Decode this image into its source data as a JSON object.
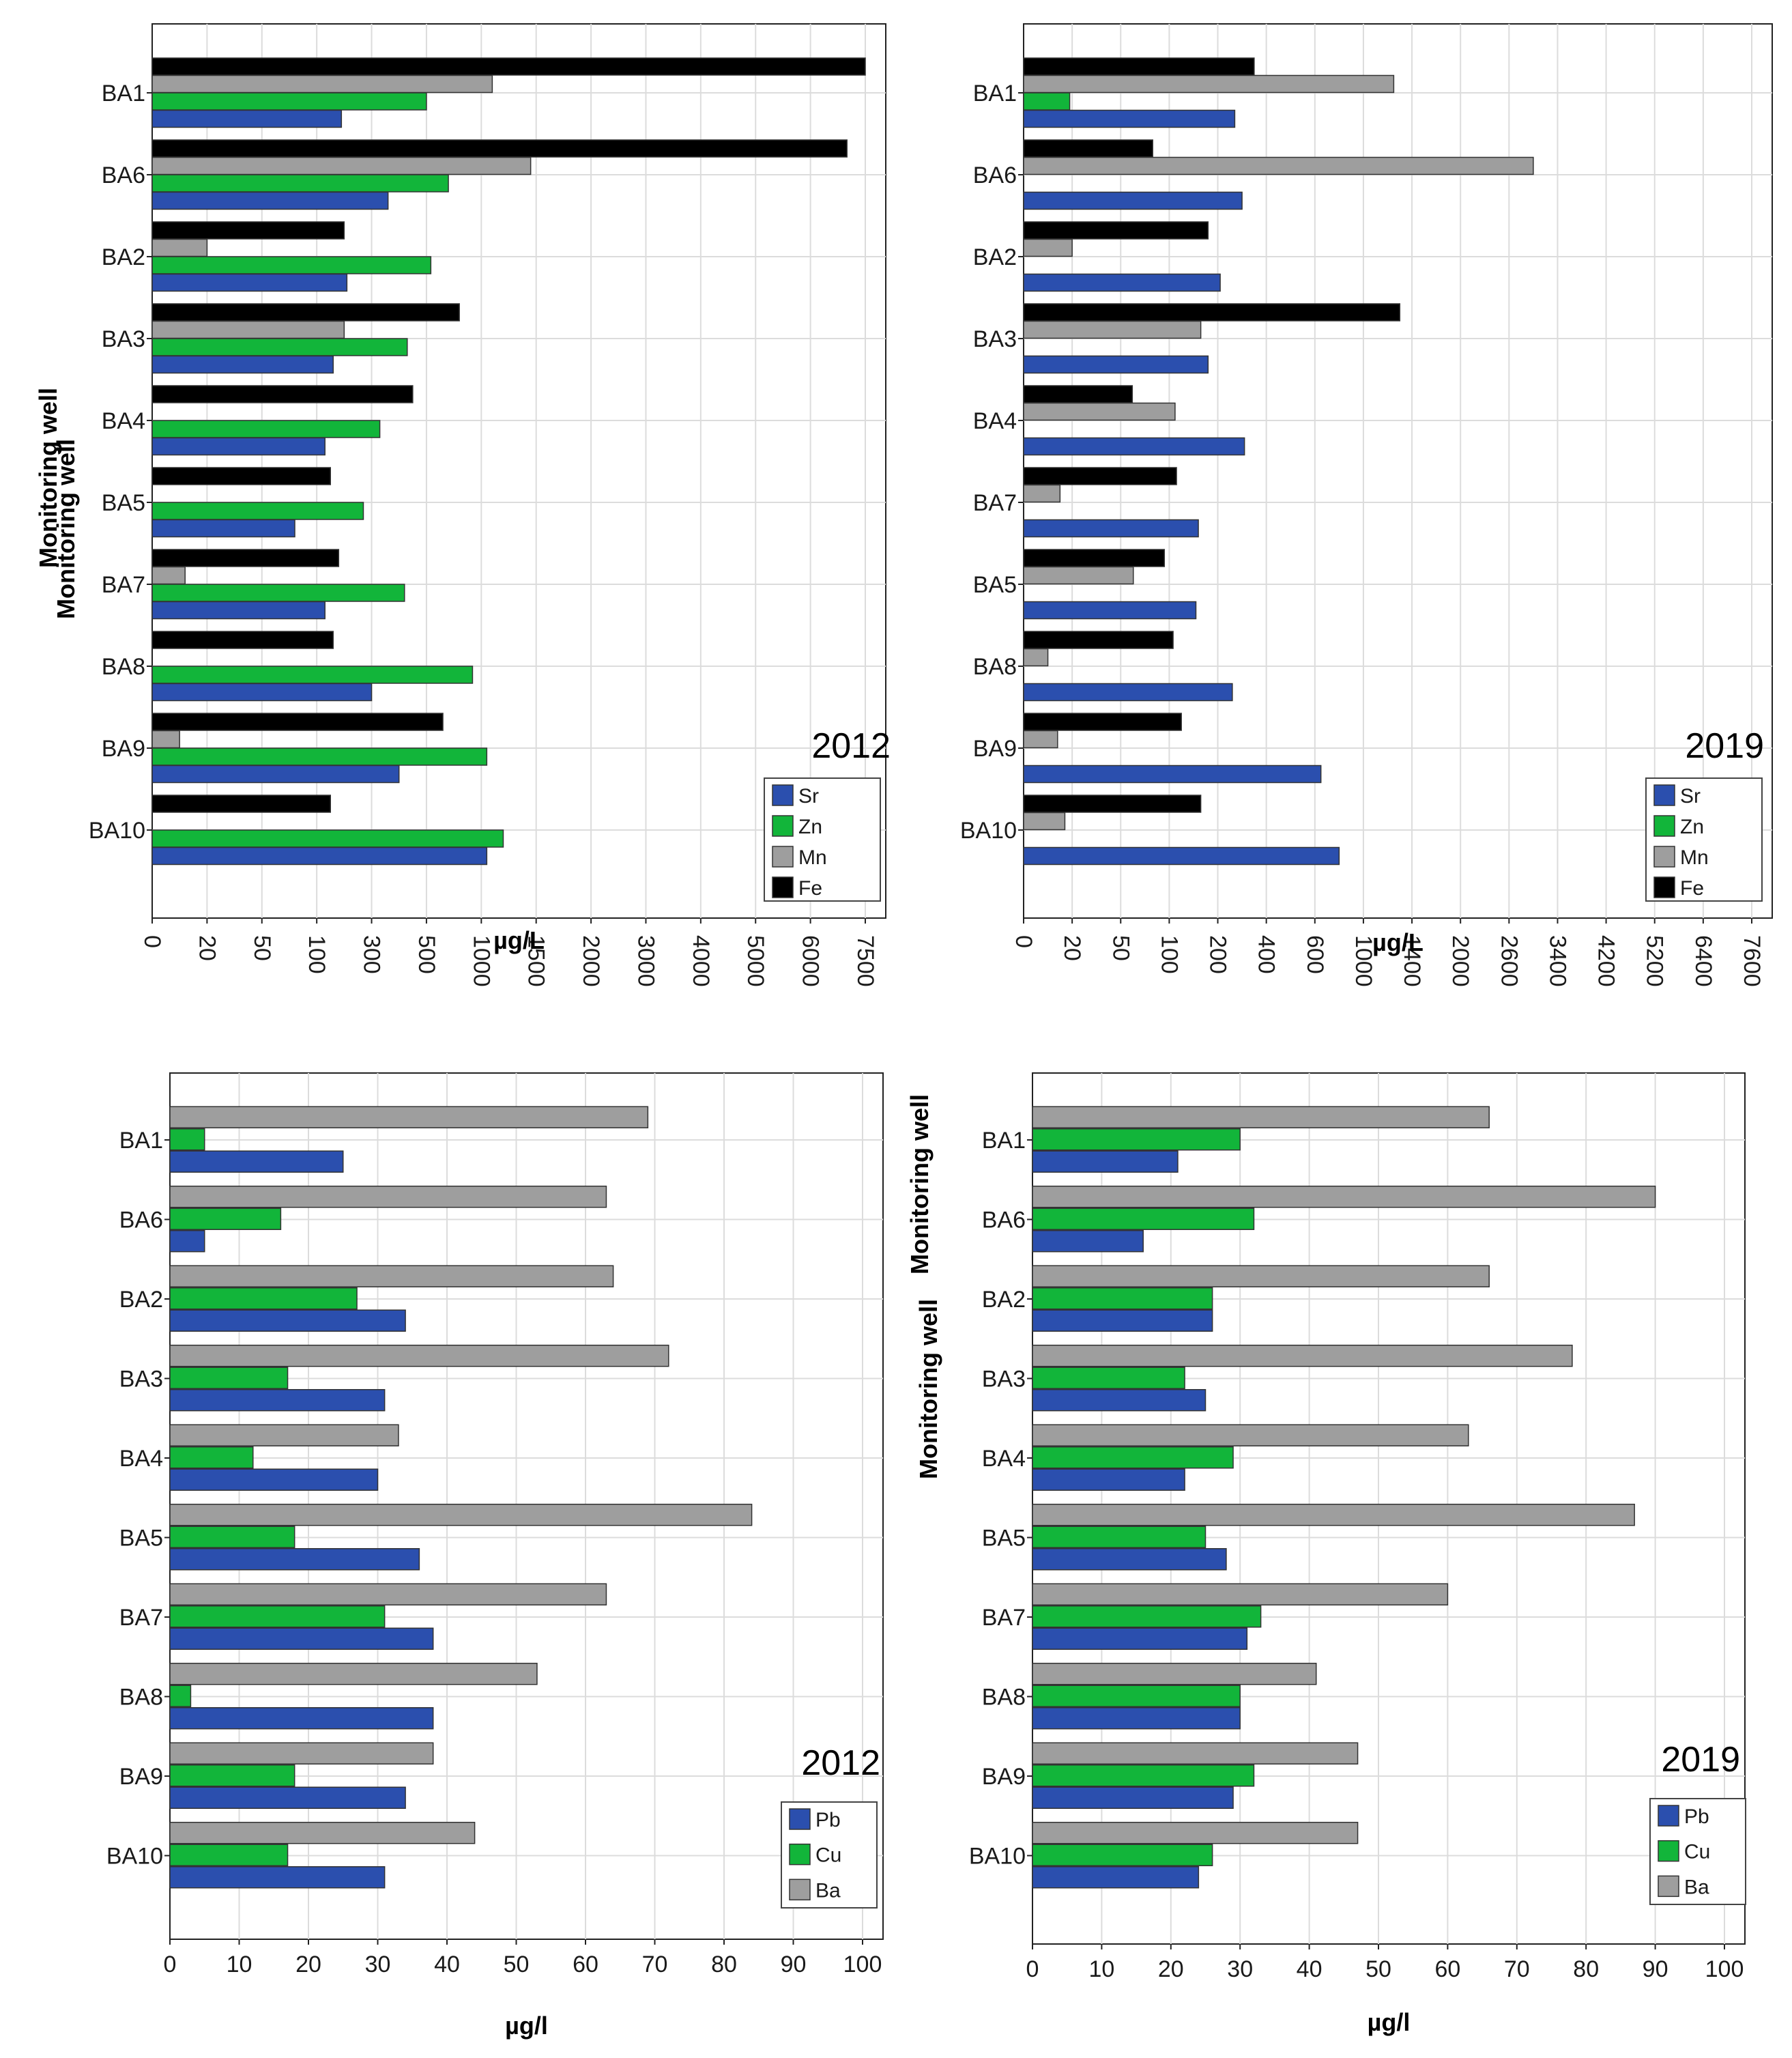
{
  "colors": {
    "Sr": "#2b4fae",
    "Zn": "#12b53a",
    "Mn": "#9e9e9e",
    "Fe": "#000000",
    "Pb": "#2b4fae",
    "Cu": "#12b53a",
    "Ba": "#9e9e9e"
  },
  "chart_data": [
    {
      "id": "p1",
      "type": "bar",
      "orientation": "horizontal",
      "title": "2012",
      "xlabel": "µg/L",
      "ylabel": "Monitoring well",
      "scale": "nonlinear (tick-index)",
      "x_ticks": [
        "0",
        "20",
        "50",
        "100",
        "300",
        "500",
        "1000",
        "1500",
        "2000",
        "3000",
        "4000",
        "5000",
        "6000",
        "7500"
      ],
      "categories": [
        "BA1",
        "BA6",
        "BA2",
        "BA3",
        "BA4",
        "BA5",
        "BA7",
        "BA8",
        "BA9",
        "BA10"
      ],
      "series": [
        {
          "name": "Fe",
          "values": [
            7500,
            7000,
            200,
            800,
            450,
            150,
            180,
            160,
            650,
            150
          ]
        },
        {
          "name": "Mn",
          "values": [
            1100,
            1450,
            20,
            200,
            0,
            0,
            12,
            0,
            10,
            0
          ]
        },
        {
          "name": "Zn",
          "values": [
            500,
            700,
            540,
            430,
            330,
            270,
            420,
            920,
            1050,
            1200
          ]
        },
        {
          "name": "Sr",
          "values": [
            190,
            360,
            210,
            160,
            130,
            80,
            130,
            300,
            400,
            1050
          ]
        }
      ],
      "legend": [
        "Sr",
        "Zn",
        "Mn",
        "Fe"
      ],
      "legend_position": "bottom-right"
    },
    {
      "id": "p2",
      "type": "bar",
      "orientation": "horizontal",
      "title": "2019",
      "xlabel": "µg/L",
      "ylabel": "Monitoring well",
      "scale": "nonlinear (tick-index)",
      "x_ticks": [
        "0",
        "20",
        "50",
        "100",
        "200",
        "400",
        "600",
        "1000",
        "1400",
        "2000",
        "2600",
        "3400",
        "4200",
        "5200",
        "6400",
        "7600"
      ],
      "categories": [
        "BA1",
        "BA6",
        "BA2",
        "BA3",
        "BA4",
        "BA7",
        "BA5",
        "BA8",
        "BA9",
        "BA10"
      ],
      "series": [
        {
          "name": "Fe",
          "values": [
            350,
            83,
            180,
            1300,
            62,
            115,
            95,
            108,
            125,
            165
          ]
        },
        {
          "name": "Mn",
          "values": [
            1250,
            3000,
            20,
            165,
            112,
            15,
            63,
            10,
            14,
            17
          ]
        },
        {
          "name": "Zn",
          "values": [
            19,
            0,
            0,
            0,
            0,
            0,
            0,
            0,
            0,
            0
          ]
        },
        {
          "name": "Sr",
          "values": [
            270,
            300,
            210,
            180,
            310,
            160,
            155,
            260,
            650,
            800
          ]
        }
      ],
      "legend": [
        "Sr",
        "Zn",
        "Mn",
        "Fe"
      ],
      "legend_position": "bottom-right"
    },
    {
      "id": "p3",
      "type": "bar",
      "orientation": "horizontal",
      "title": "2012",
      "xlabel": "µg/l",
      "ylabel": "Monitoring well",
      "xlim": [
        0,
        100
      ],
      "x_ticks": [
        "0",
        "10",
        "20",
        "30",
        "40",
        "50",
        "60",
        "70",
        "80",
        "90",
        "100"
      ],
      "categories": [
        "BA1",
        "BA6",
        "BA2",
        "BA3",
        "BA4",
        "BA5",
        "BA7",
        "BA8",
        "BA9",
        "BA10"
      ],
      "series": [
        {
          "name": "Ba",
          "values": [
            69,
            63,
            64,
            72,
            33,
            84,
            63,
            53,
            38,
            44
          ]
        },
        {
          "name": "Cu",
          "values": [
            5,
            16,
            27,
            17,
            12,
            18,
            31,
            3,
            18,
            17
          ]
        },
        {
          "name": "Pb",
          "values": [
            25,
            5,
            34,
            31,
            30,
            36,
            38,
            38,
            34,
            31
          ]
        }
      ],
      "legend": [
        "Pb",
        "Cu",
        "Ba"
      ],
      "legend_position": "bottom-right"
    },
    {
      "id": "p4",
      "type": "bar",
      "orientation": "horizontal",
      "title": "2019",
      "xlabel": "µg/l",
      "ylabel": "Monitoring well",
      "xlim": [
        0,
        100
      ],
      "x_ticks": [
        "0",
        "10",
        "20",
        "30",
        "40",
        "50",
        "60",
        "70",
        "80",
        "90",
        "100"
      ],
      "categories": [
        "BA1",
        "BA6",
        "BA2",
        "BA3",
        "BA4",
        "BA5",
        "BA7",
        "BA8",
        "BA9",
        "BA10"
      ],
      "series": [
        {
          "name": "Ba",
          "values": [
            66,
            90,
            66,
            78,
            63,
            87,
            60,
            41,
            47,
            47
          ]
        },
        {
          "name": "Cu",
          "values": [
            30,
            32,
            26,
            22,
            29,
            25,
            33,
            30,
            32,
            26
          ]
        },
        {
          "name": "Pb",
          "values": [
            21,
            16,
            26,
            25,
            22,
            28,
            31,
            30,
            29,
            24
          ]
        }
      ],
      "legend": [
        "Pb",
        "Cu",
        "Ba"
      ],
      "legend_position": "bottom-right"
    }
  ]
}
